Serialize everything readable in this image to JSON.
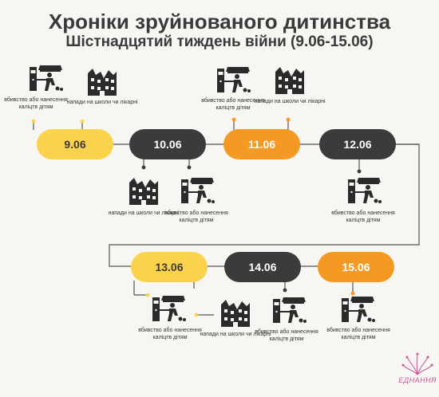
{
  "header": {
    "title": "Хроніки зруйнованого дитинства",
    "subtitle": "Шістнадцятий тиждень війни (9.06-15.06)"
  },
  "dates": [
    "9.06",
    "10.06",
    "11.06",
    "12.06",
    "13.06",
    "14.06",
    "15.06"
  ],
  "labels": {
    "kill": "вбивство або нанесення каліцтв дітям",
    "attack": "напади на школи чи лікарні"
  },
  "colors": {
    "yellow": "#fbd24c",
    "dark": "#3b3b3b",
    "orange": "#f49a24",
    "line": "#555555"
  },
  "logo": {
    "text": "ЕДНАННЯ"
  }
}
